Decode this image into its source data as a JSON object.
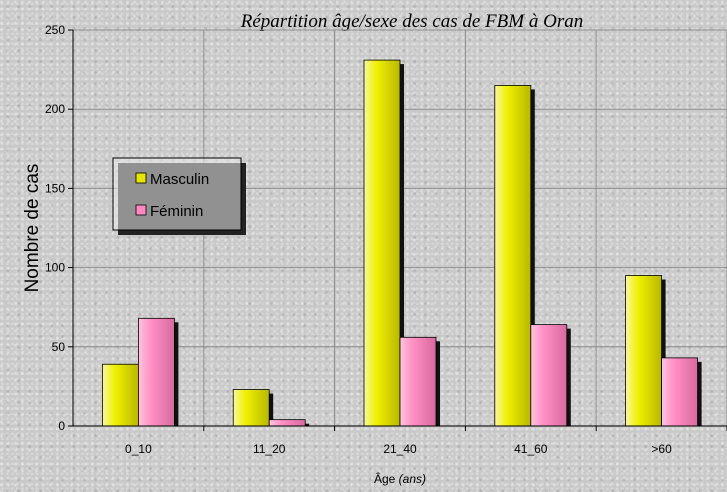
{
  "chart_data": {
    "type": "bar",
    "title": "Répartition âge/sexe des cas de FBM à Oran",
    "xlabel": "Âge",
    "xlabel_unit": "(ans)",
    "ylabel": "Nombre de cas",
    "ylim": [
      0,
      250
    ],
    "yticks": [
      0,
      50,
      100,
      150,
      200,
      250
    ],
    "categories": [
      "0_10",
      "11_20",
      "21_40",
      "41_60",
      ">60"
    ],
    "series": [
      {
        "name": "Masculin",
        "color": "#e6e600",
        "values": [
          39,
          23,
          231,
          215,
          95
        ]
      },
      {
        "name": "Féminin",
        "color": "#ff88c0",
        "values": [
          68,
          4,
          56,
          64,
          43
        ]
      }
    ],
    "grid": true,
    "legend_position": "left"
  }
}
